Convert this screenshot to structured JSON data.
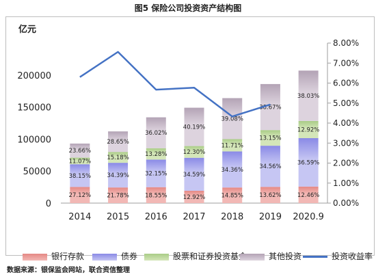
{
  "title": "图5 保险公司投资资产结构图",
  "source": "数据来源：银保监会网站，联合资信整理",
  "chart_data": {
    "type": "bar",
    "stacked": true,
    "title": "图5 保险公司投资资产结构图",
    "y_unit_label": "亿元",
    "categories": [
      "2014",
      "2015",
      "2016",
      "2017",
      "2018",
      "2019",
      "2020.9"
    ],
    "ylim": [
      0,
      250000
    ],
    "y_ticks": [
      0,
      50000,
      100000,
      150000,
      200000
    ],
    "y2lim": [
      0,
      0.08
    ],
    "y2_ticks": [
      "0.00%",
      "1.00%",
      "2.00%",
      "3.00%",
      "4.00%",
      "5.00%",
      "6.00%",
      "7.00%",
      "8.00%"
    ],
    "totals": [
      93000,
      112000,
      134000,
      149000,
      164000,
      186000,
      207000
    ],
    "series": [
      {
        "name": "银行存款",
        "color": "#f2b8b5",
        "color_dark": "#e58884",
        "pct": [
          27.12,
          21.78,
          18.55,
          12.92,
          14.85,
          13.62,
          12.46
        ],
        "labels": [
          "27.12%",
          "21.78%",
          "18.55%",
          "12.92%",
          "14.85%",
          "13.62%",
          "12.46%"
        ]
      },
      {
        "name": "债券",
        "color": "#c6c6f3",
        "color_dark": "#8a8ae6",
        "pct": [
          38.15,
          34.39,
          32.15,
          34.59,
          34.36,
          34.56,
          36.59
        ],
        "labels": [
          "38.15%",
          "34.39%",
          "32.15%",
          "34.59%",
          "34.36%",
          "34.56%",
          "36.59%"
        ]
      },
      {
        "name": "股票和证券投资基金",
        "color": "#d4e6b9",
        "color_dark": "#a9cc86",
        "pct": [
          11.07,
          15.18,
          13.28,
          12.3,
          11.71,
          13.15,
          12.92
        ],
        "labels": [
          "11.07%",
          "15.18%",
          "13.28%",
          "12.30%",
          "11.71%",
          "13.15%",
          "12.92%"
        ]
      },
      {
        "name": "其他投资",
        "color": "#ddd3de",
        "color_dark": "#b3a3b5",
        "pct": [
          23.66,
          28.65,
          36.02,
          40.19,
          39.08,
          38.67,
          38.03
        ],
        "labels": [
          "23.66%",
          "28.65%",
          "36.02%",
          "40.19%",
          "39.08%",
          "38.67%",
          "38.03%"
        ]
      }
    ],
    "line_series": {
      "name": "投资收益率",
      "color": "#4472c4",
      "axis": "right",
      "x": [
        "2014",
        "2015",
        "2016",
        "2017",
        "2018",
        "2019"
      ],
      "values": [
        0.063,
        0.0756,
        0.0567,
        0.0577,
        0.0433,
        0.0493
      ]
    },
    "legend_position": "bottom"
  }
}
